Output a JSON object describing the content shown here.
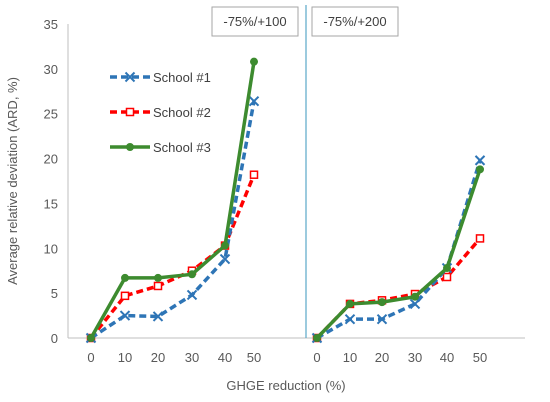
{
  "chart_data": {
    "type": "line",
    "ylabel": "Average relative deviation (ARD, %)",
    "xlabel": "GHGE reduction (%)",
    "ylim": [
      0,
      35
    ],
    "yticks": [
      "0",
      "5",
      "10",
      "15",
      "20",
      "25",
      "30",
      "35"
    ],
    "grid": false,
    "legend_position": "top-left",
    "panels": [
      {
        "label": "-75%/+100",
        "categories": [
          "0",
          "10",
          "20",
          "30",
          "40",
          "50"
        ],
        "series": [
          {
            "name": "School #1",
            "color": "#2E75B6",
            "marker": "x-mark",
            "style": "dashed",
            "values": [
              0,
              2.5,
              2.4,
              4.8,
              8.8,
              26.4
            ]
          },
          {
            "name": "School #2",
            "color": "#FF0000",
            "marker": "open-square",
            "style": "dashed",
            "values": [
              0,
              4.7,
              5.8,
              7.5,
              10.3,
              18.2
            ]
          },
          {
            "name": "School #3",
            "color": "#3D8B2F",
            "marker": "filled-circle",
            "style": "solid",
            "values": [
              0,
              6.7,
              6.7,
              7.1,
              10.3,
              30.8
            ]
          }
        ]
      },
      {
        "label": "-75%/+200",
        "categories": [
          "0",
          "10",
          "20",
          "30",
          "40",
          "50"
        ],
        "series": [
          {
            "name": "School #1",
            "color": "#2E75B6",
            "marker": "x-mark",
            "style": "dashed",
            "values": [
              0,
              2.1,
              2.1,
              3.8,
              7.8,
              19.8
            ]
          },
          {
            "name": "School #2",
            "color": "#FF0000",
            "marker": "open-square",
            "style": "dashed",
            "values": [
              0,
              3.8,
              4.2,
              4.9,
              6.8,
              11.1
            ]
          },
          {
            "name": "School #3",
            "color": "#3D8B2F",
            "marker": "filled-circle",
            "style": "solid",
            "values": [
              0,
              3.8,
              4.0,
              4.6,
              7.8,
              18.8
            ]
          }
        ]
      }
    ],
    "divider_color": "#5BA8C8"
  }
}
